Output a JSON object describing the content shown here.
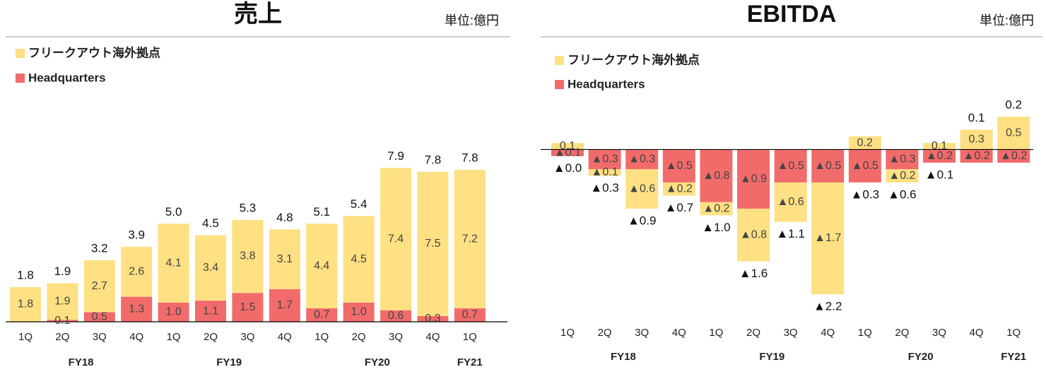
{
  "chart_data": [
    {
      "type": "bar",
      "stacked": true,
      "title": "売上",
      "unit": "単位:億円",
      "groups": [
        {
          "name": "FY18",
          "categories": [
            "1Q",
            "2Q",
            "3Q",
            "4Q"
          ]
        },
        {
          "name": "FY19",
          "categories": [
            "1Q",
            "2Q",
            "3Q",
            "4Q"
          ]
        },
        {
          "name": "FY20",
          "categories": [
            "1Q",
            "2Q",
            "3Q",
            "4Q"
          ]
        },
        {
          "name": "FY21",
          "categories": [
            "1Q"
          ]
        }
      ],
      "series": [
        {
          "name": "フリークアウト海外拠点",
          "color": "#FFE083",
          "values": [
            1.8,
            1.9,
            2.7,
            2.6,
            4.1,
            3.4,
            3.8,
            3.1,
            4.4,
            4.5,
            7.4,
            7.5,
            7.2
          ],
          "value_labels": [
            "1.8",
            "1.9",
            "2.7",
            "2.6",
            "4.1",
            "3.4",
            "3.8",
            "3.1",
            "4.4",
            "4.5",
            "7.4",
            "7.5",
            "7.2"
          ]
        },
        {
          "name": "Headquarters",
          "color": "#F26B6B",
          "values": [
            null,
            0.1,
            0.5,
            1.3,
            1.0,
            1.1,
            1.5,
            1.7,
            0.7,
            1.0,
            0.6,
            0.3,
            0.7
          ],
          "value_labels": [
            null,
            "0.1",
            "0.5",
            "1.3",
            "1.0",
            "1.1",
            "1.5",
            "1.7",
            "0.7",
            "1.0",
            "0.6",
            "0.3",
            "0.7"
          ]
        }
      ],
      "totals": {
        "values": [
          1.8,
          1.9,
          3.2,
          3.9,
          5.0,
          4.5,
          5.3,
          4.8,
          5.1,
          5.4,
          7.9,
          7.8,
          7.8
        ],
        "value_labels": [
          "1.8",
          "1.9",
          "3.2",
          "3.9",
          "5.0",
          "4.5",
          "5.3",
          "4.8",
          "5.1",
          "5.4",
          "7.9",
          "7.8",
          "7.8"
        ]
      },
      "ylim": [
        0,
        10
      ]
    },
    {
      "type": "bar",
      "stacked": true,
      "title": "EBITDA",
      "unit": "単位:億円",
      "groups": [
        {
          "name": "FY18",
          "categories": [
            "1Q",
            "2Q",
            "3Q",
            "4Q"
          ]
        },
        {
          "name": "FY19",
          "categories": [
            "1Q",
            "2Q",
            "3Q",
            "4Q"
          ]
        },
        {
          "name": "FY20",
          "categories": [
            "1Q",
            "2Q",
            "3Q",
            "4Q"
          ]
        },
        {
          "name": "FY21",
          "categories": [
            "1Q"
          ]
        }
      ],
      "series": [
        {
          "name": "フリークアウト海外拠点",
          "color": "#FFE083",
          "values": [
            0.1,
            -0.1,
            -0.6,
            -0.2,
            -0.2,
            -0.8,
            -0.6,
            -1.7,
            0.2,
            -0.2,
            0.1,
            0.3,
            0.5
          ],
          "value_labels": [
            "0.1",
            "▲0.1",
            "▲0.6",
            "▲0.2",
            "▲0.2",
            "▲0.8",
            "▲0.6",
            "▲1.7",
            "0.2",
            "▲0.2",
            "0.1",
            "0.3",
            "0.5"
          ]
        },
        {
          "name": "Headquarters",
          "color": "#F26B6B",
          "values": [
            -0.1,
            -0.3,
            -0.3,
            -0.5,
            -0.8,
            -0.9,
            -0.5,
            -0.5,
            -0.5,
            -0.3,
            -0.2,
            -0.2,
            -0.2
          ],
          "value_labels": [
            "▲0.1",
            "▲0.3",
            "▲0.3",
            "▲0.5",
            "▲0.8",
            "▲0.9",
            "▲0.5",
            "▲0.5",
            "▲0.5",
            "▲0.3",
            "▲0.2",
            "▲0.2",
            "▲0.2"
          ]
        }
      ],
      "totals": {
        "values": [
          -0.0,
          -0.3,
          -0.9,
          -0.7,
          -1.0,
          -1.6,
          -1.1,
          -2.2,
          -0.3,
          -0.6,
          -0.1,
          0.1,
          0.2
        ],
        "value_labels": [
          "▲0.0",
          "▲0.3",
          "▲0.9",
          "▲0.7",
          "▲1.0",
          "▲1.6",
          "▲1.1",
          "▲2.2",
          "▲0.3",
          "▲0.6",
          "▲0.1",
          "0.1",
          "0.2"
        ]
      },
      "ylim": [
        -2.5,
        0.8
      ]
    }
  ]
}
